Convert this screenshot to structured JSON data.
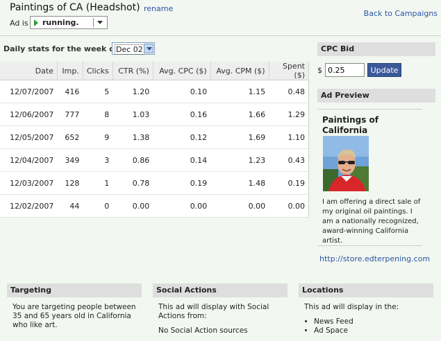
{
  "header": {
    "title": "Paintings of CA (Headshot)",
    "rename": "rename",
    "back": "Back to Campaigns",
    "ad_is_label": "Ad is",
    "status": "running."
  },
  "stats": {
    "week_label": "Daily stats for the week of:",
    "week_value": "Dec 02",
    "columns": [
      "Date",
      "Imp.",
      "Clicks",
      "CTR (%)",
      "Avg. CPC ($)",
      "Avg. CPM ($)",
      "Spent ($)"
    ],
    "rows": [
      [
        "12/07/2007",
        "416",
        "5",
        "1.20",
        "0.10",
        "1.15",
        "0.48"
      ],
      [
        "12/06/2007",
        "777",
        "8",
        "1.03",
        "0.16",
        "1.66",
        "1.29"
      ],
      [
        "12/05/2007",
        "652",
        "9",
        "1.38",
        "0.12",
        "1.69",
        "1.10"
      ],
      [
        "12/04/2007",
        "349",
        "3",
        "0.86",
        "0.14",
        "1.23",
        "0.43"
      ],
      [
        "12/03/2007",
        "128",
        "1",
        "0.78",
        "0.19",
        "1.48",
        "0.19"
      ],
      [
        "12/02/2007",
        "44",
        "0",
        "0.00",
        "0.00",
        "0.00",
        "0.00"
      ]
    ]
  },
  "bid": {
    "heading": "CPC Bid",
    "currency": "$",
    "value": "0.25",
    "update_label": "Update"
  },
  "preview": {
    "heading": "Ad Preview",
    "title": "Paintings of California",
    "body": "I am offering a direct sale of my original oil paintings. I am a nationally recognized, award-winning California artist.",
    "link": "http://store.edterpening.com"
  },
  "targeting": {
    "heading": "Targeting",
    "text": "You are targeting people between 35 and 65 years old in California who like art."
  },
  "social": {
    "heading": "Social Actions",
    "text": "This ad will display with Social Actions from:",
    "sources": "No Social Action sources"
  },
  "locations": {
    "heading": "Locations",
    "text": "This ad will display in the:",
    "items": [
      "News Feed",
      "Ad Space"
    ]
  },
  "colors": {
    "background": "#f2f7f2",
    "link": "#2a55a0",
    "button": "#3b5998",
    "section_header": "#dedede"
  }
}
